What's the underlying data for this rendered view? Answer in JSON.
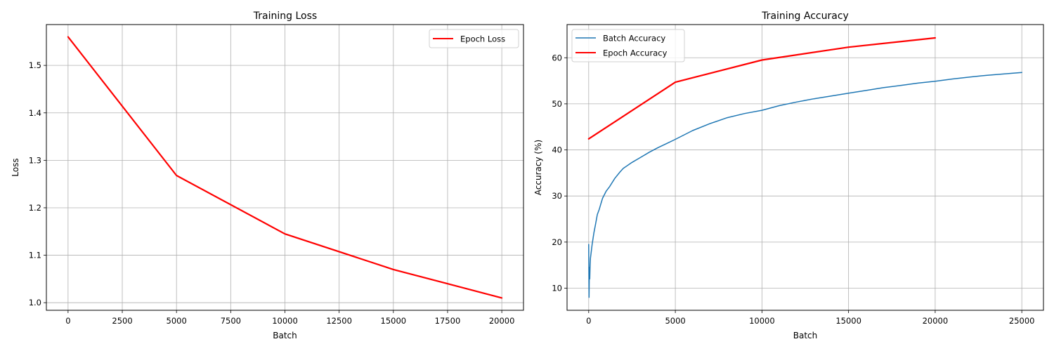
{
  "chart_data": [
    {
      "type": "line",
      "title": "Training Loss",
      "xlabel": "Batch",
      "ylabel": "Loss",
      "xlim": [
        -1000,
        21000
      ],
      "ylim": [
        0.984,
        1.586
      ],
      "xticks": [
        0,
        2500,
        5000,
        7500,
        10000,
        12500,
        15000,
        17500,
        20000
      ],
      "yticks": [
        1.0,
        1.1,
        1.2,
        1.3,
        1.4,
        1.5
      ],
      "xtick_labels": [
        "0",
        "2500",
        "5000",
        "7500",
        "10000",
        "12500",
        "15000",
        "17500",
        "20000"
      ],
      "ytick_labels": [
        "1.0",
        "1.1",
        "1.2",
        "1.3",
        "1.4",
        "1.5"
      ],
      "grid": true,
      "legend": "upper-right",
      "series": [
        {
          "name": "Epoch Loss",
          "color": "#ff0000",
          "x": [
            0,
            5000,
            10000,
            15000,
            20000
          ],
          "y": [
            1.56,
            1.268,
            1.145,
            1.07,
            1.01
          ]
        }
      ]
    },
    {
      "type": "line",
      "title": "Training Accuracy",
      "xlabel": "Batch",
      "ylabel": "Accuracy (%)",
      "xlim": [
        -1250,
        26250
      ],
      "ylim": [
        5.2,
        67.2
      ],
      "xticks": [
        0,
        5000,
        10000,
        15000,
        20000,
        25000
      ],
      "yticks": [
        10,
        20,
        30,
        40,
        50,
        60
      ],
      "xtick_labels": [
        "0",
        "5000",
        "10000",
        "15000",
        "20000",
        "25000"
      ],
      "ytick_labels": [
        "10",
        "20",
        "30",
        "40",
        "50",
        "60"
      ],
      "grid": true,
      "legend": "upper-left",
      "series": [
        {
          "name": "Batch Accuracy",
          "color": "#1f77b4",
          "x": [
            0,
            20,
            40,
            60,
            80,
            100,
            150,
            200,
            300,
            400,
            500,
            600,
            700,
            800,
            1000,
            1200,
            1500,
            1800,
            2000,
            2500,
            3000,
            3500,
            4000,
            4500,
            5000,
            6000,
            7000,
            8000,
            9000,
            10000,
            11000,
            12000,
            13000,
            14000,
            15000,
            16000,
            17000,
            18000,
            19000,
            20000,
            21000,
            22000,
            23000,
            24000,
            25000
          ],
          "y": [
            19.5,
            8.0,
            14.5,
            12.0,
            15.0,
            16.5,
            18.0,
            19.5,
            22.0,
            24.0,
            26.0,
            27.0,
            28.3,
            29.5,
            31.0,
            32.0,
            33.8,
            35.2,
            36.0,
            37.3,
            38.4,
            39.5,
            40.5,
            41.4,
            42.3,
            44.2,
            45.7,
            47.0,
            47.9,
            48.6,
            49.6,
            50.4,
            51.1,
            51.7,
            52.3,
            52.9,
            53.5,
            54.0,
            54.5,
            54.9,
            55.4,
            55.8,
            56.2,
            56.5,
            56.8
          ]
        },
        {
          "name": "Epoch Accuracy",
          "color": "#ff0000",
          "x": [
            0,
            5000,
            10000,
            15000,
            20000
          ],
          "y": [
            42.4,
            54.7,
            59.5,
            62.3,
            64.3
          ]
        }
      ]
    }
  ]
}
